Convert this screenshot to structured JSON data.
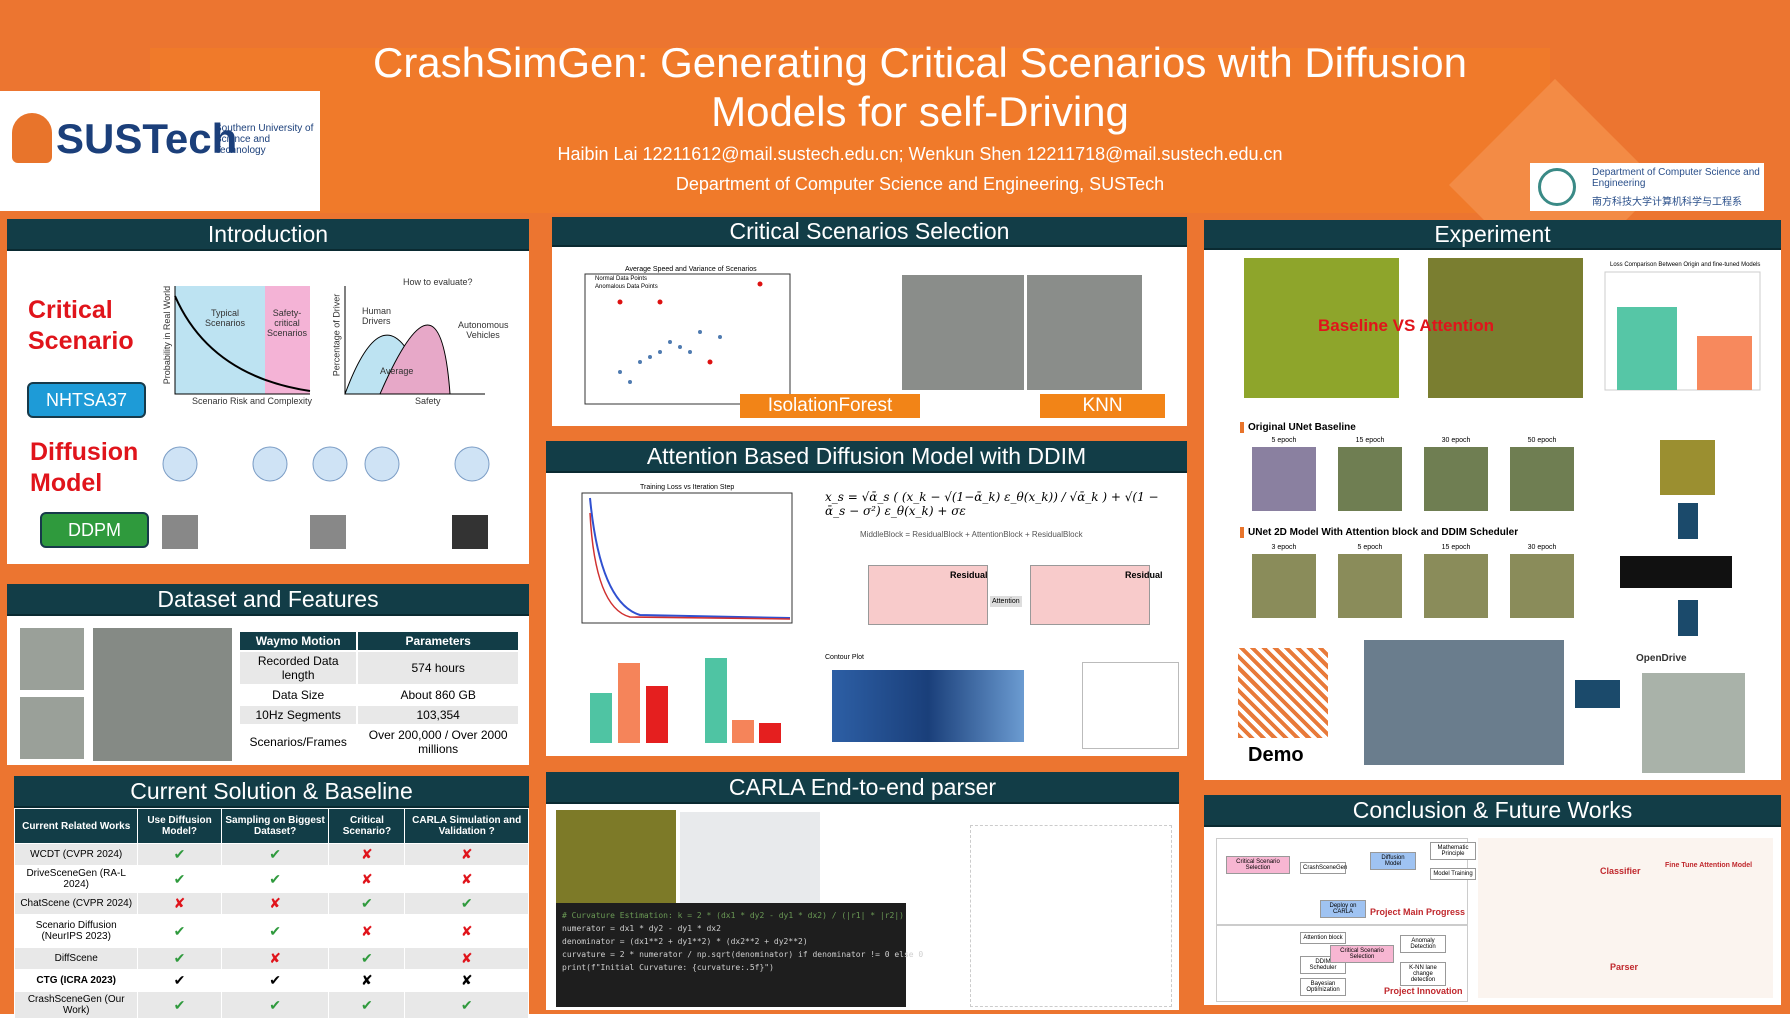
{
  "header": {
    "title": "CrashSimGen: Generating Critical Scenarios with Diffusion Models for self-Driving",
    "authors": "Haibin Lai 12211612@mail.sustech.edu.cn; Wenkun Shen 12211718@mail.sustech.edu.cn",
    "department": "Department of Computer Science and Engineering, SUSTech",
    "logo": "SUSTech",
    "logo_sub": "Southern University of Science and Technology",
    "dept_logo": "Department of Computer Science and Engineering",
    "dept_logo_cn": "南方科技大学计算机科学与工程系"
  },
  "introduction": {
    "title": "Introduction",
    "critical": "Critical Scenario",
    "nhtsa": "NHTSA37",
    "diffusion": "Diffusion Model",
    "ddpm": "DDPM",
    "fig_a_x": "Scenario Risk and Complexity",
    "fig_a_y": "Probability in Real World",
    "fig_a_typical": "Typical Scenarios",
    "fig_a_safety": "Safety-critical Scenarios",
    "fig_b_x": "Safety",
    "fig_b_y": "Percentage of Driver",
    "fig_b_question": "How to evaluate?",
    "fig_b_human": "Human Drivers",
    "fig_b_auto": "Autonomous Vehicles",
    "fig_b_avg": "Average"
  },
  "dataset": {
    "title": "Dataset and Features",
    "header": [
      "Waymo Motion",
      "Parameters"
    ],
    "rows": [
      [
        "Recorded Data length",
        "574 hours"
      ],
      [
        "Data Size",
        "About 860 GB"
      ],
      [
        "10Hz Segments",
        "103,354"
      ],
      [
        "Scenarios/Frames",
        "Over 200,000 / Over 2000 millions"
      ]
    ]
  },
  "baseline": {
    "title": "Current Solution & Baseline",
    "header": [
      "Current Related Works",
      "Use Diffusion Model?",
      "Sampling on Biggest Dataset?",
      "Critical Scenario?",
      "CARLA Simulation and Validation ?"
    ],
    "rows": [
      [
        "WCDT (CVPR 2024)",
        "✔",
        "✔",
        "✘",
        "✘"
      ],
      [
        "DriveSceneGen (RA-L 2024)",
        "✔",
        "✔",
        "✘",
        "✘"
      ],
      [
        "ChatScene (CVPR 2024)",
        "✘",
        "✘",
        "✔",
        "✔"
      ],
      [
        "Scenario Diffusion (NeurIPS 2023)",
        "✔",
        "✔",
        "✘",
        "✘"
      ],
      [
        "DiffScene",
        "✔",
        "✘",
        "✔",
        "✘"
      ],
      [
        "CTG (ICRA 2023)",
        "✔",
        "✔",
        "✘",
        "✘"
      ],
      [
        "CrashSceneGen (Our Work)",
        "✔",
        "✔",
        "✔",
        "✔"
      ]
    ]
  },
  "selection": {
    "title": "Critical Scenarios Selection",
    "plot_title": "Average Speed and Variance of Scenarios",
    "legend_normal": "Normal Data Points",
    "legend_anomalous": "Anomalous Data Points",
    "isolation": "IsolationForest",
    "knn": "KNN"
  },
  "attention": {
    "title": "Attention Based Diffusion Model with DDIM",
    "loss_title": "Training Loss vs Iteration Step",
    "formula": "x_s = √ᾱ_s ( (x_k − √(1−ᾱ_k) ε_θ(x_k)) / √ᾱ_k ) + √(1 − ᾱ_s − σ²) ε_θ(x_k) + σε",
    "block": "MiddleBlock = ResidualBlock + AttentionBlock + ResidualBlock",
    "residual": "Residual",
    "attention_label": "Attention",
    "contour": "Contour Plot"
  },
  "carla": {
    "title": "CARLA End-to-end parser",
    "code": [
      "# Curvature Estimation: k = 2 * (dx1 * dy2 - dy1 * dx2) / (|r1| * |r2|)",
      "numerator = dx1 * dy2 - dy1 * dx2",
      "denominator = (dx1**2 + dy1**2) * (dx2**2 + dy2**2)",
      "curvature = 2 * numerator / np.sqrt(denominator) if denominator != 0 else 0",
      "print(f\"Initial Curvature: {curvature:.5f}\")"
    ]
  },
  "experiment": {
    "title": "Experiment",
    "compare": "Baseline VS Attention",
    "loss_title": "Loss Comparison Between Origin and fine-tuned Models",
    "baseline_label": "Original UNet Baseline",
    "baseline_epochs": [
      "5 epoch",
      "15 epoch",
      "30 epoch",
      "50 epoch"
    ],
    "attention_label": "UNet 2D Model With Attention block and DDIM Scheduler",
    "attention_epochs": [
      "3 epoch",
      "5 epoch",
      "15 epoch",
      "30 epoch"
    ],
    "opendrive": "OpenDrive",
    "demo": "Demo"
  },
  "conclusion": {
    "title": "Conclusion & Future Works",
    "progress": "Project Main Progress",
    "innovation": "Project Innovation",
    "nodes": [
      "Critical Scenario Selection",
      "CrashSceneGen",
      "Diffusion Model",
      "Mathematic Principle",
      "Model Training",
      "Deploy on CARLA",
      "Attention block",
      "DDIM Scheduler",
      "Bayesian Optimization",
      "Critical Scenario Selection",
      "Anomaly Detection",
      "K-NN lane change detection"
    ],
    "classifier": "Classifier",
    "finetune": "Fine Tune Attention Model",
    "parser": "Parser"
  }
}
